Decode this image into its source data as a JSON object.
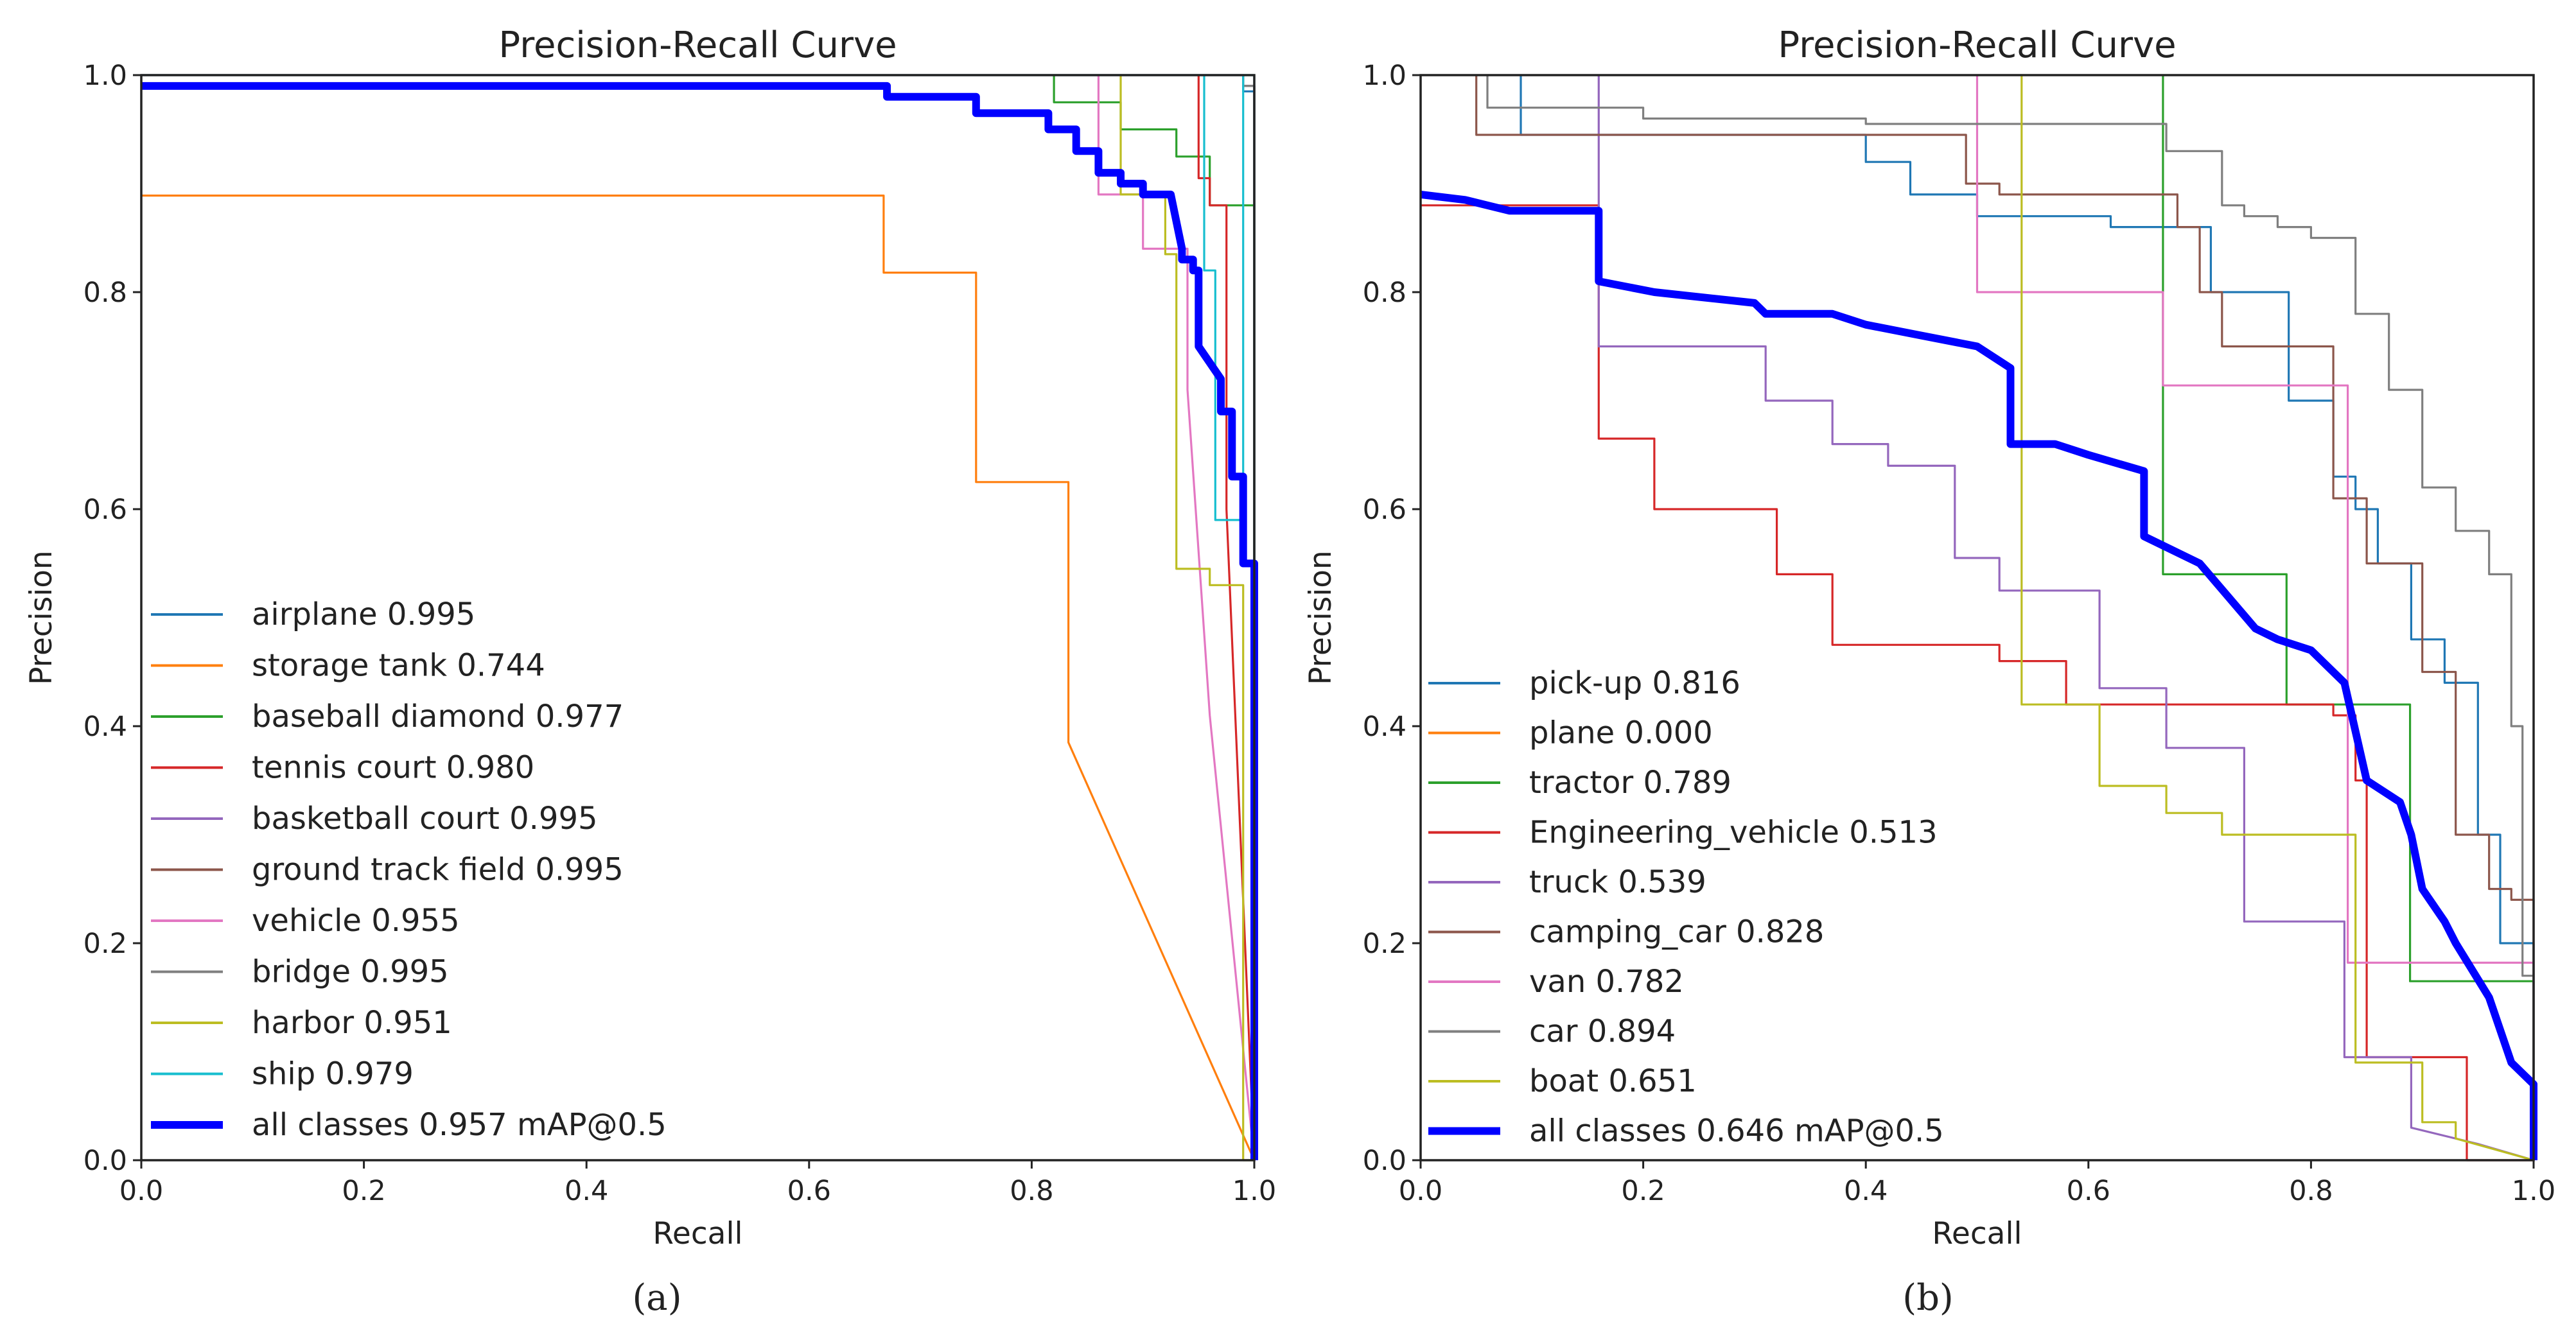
{
  "chart_data": [
    {
      "type": "line",
      "caption": "(a)",
      "title": "Precision-Recall Curve",
      "xlabel": "Recall",
      "ylabel": "Precision",
      "xlim": [
        0,
        1
      ],
      "ylim": [
        0,
        1
      ],
      "xticks": [
        "0.0",
        "0.2",
        "0.4",
        "0.6",
        "0.8",
        "1.0"
      ],
      "yticks": [
        "0.0",
        "0.2",
        "0.4",
        "0.6",
        "0.8",
        "1.0"
      ],
      "legend_position": "lower-left",
      "series": [
        {
          "name": "airplane 0.995",
          "color": "#1f77b4",
          "width": "thin",
          "x": [
            0,
            0.99,
            0.99,
            1.0,
            1.0
          ],
          "y": [
            1.0,
            1.0,
            0.985,
            0.985,
            0.0
          ]
        },
        {
          "name": "storage tank 0.744",
          "color": "#ff7f0e",
          "width": "thin",
          "x": [
            0,
            0.667,
            0.667,
            0.75,
            0.75,
            0.833,
            0.833,
            1.0
          ],
          "y": [
            0.889,
            0.889,
            0.818,
            0.818,
            0.625,
            0.625,
            0.385,
            0.0
          ]
        },
        {
          "name": "baseball diamond 0.977",
          "color": "#2ca02c",
          "width": "thin",
          "x": [
            0.82,
            0.82,
            0.88,
            0.88,
            0.93,
            0.93,
            0.96,
            0.96,
            1.0,
            1.0
          ],
          "y": [
            1.0,
            0.975,
            0.975,
            0.95,
            0.95,
            0.925,
            0.925,
            0.88,
            0.88,
            0.0
          ]
        },
        {
          "name": "tennis court 0.980",
          "color": "#d62728",
          "width": "thin",
          "x": [
            0.95,
            0.95,
            0.96,
            0.96,
            0.975,
            0.975,
            1.0
          ],
          "y": [
            1.0,
            0.905,
            0.905,
            0.88,
            0.88,
            0.6,
            0.0
          ]
        },
        {
          "name": "basketball court 0.995",
          "color": "#9467bd",
          "width": "thin",
          "x": [
            0.99,
            0.99,
            1.0,
            1.0
          ],
          "y": [
            1.0,
            0.99,
            0.99,
            0.0
          ]
        },
        {
          "name": "ground track field 0.995",
          "color": "#8c564b",
          "width": "thin",
          "x": [
            0.99,
            0.99,
            1.0,
            1.0
          ],
          "y": [
            1.0,
            0.99,
            0.99,
            0.0
          ]
        },
        {
          "name": "vehicle 0.955",
          "color": "#e377c2",
          "width": "thin",
          "x": [
            0.86,
            0.86,
            0.9,
            0.9,
            0.94,
            0.94,
            0.96,
            1.0
          ],
          "y": [
            1.0,
            0.89,
            0.89,
            0.84,
            0.84,
            0.71,
            0.41,
            0.0
          ]
        },
        {
          "name": "bridge 0.995",
          "color": "#7f7f7f",
          "width": "thin",
          "x": [
            0.99,
            0.99,
            1.0,
            1.0
          ],
          "y": [
            1.0,
            0.99,
            0.99,
            0.0
          ]
        },
        {
          "name": "harbor 0.951",
          "color": "#bcbd22",
          "width": "thin",
          "x": [
            0.88,
            0.88,
            0.92,
            0.92,
            0.93,
            0.93,
            0.96,
            0.96,
            0.99,
            0.99,
            1.0
          ],
          "y": [
            1.0,
            0.89,
            0.89,
            0.835,
            0.835,
            0.545,
            0.545,
            0.53,
            0.53,
            0.0,
            0.0
          ]
        },
        {
          "name": "ship 0.979",
          "color": "#17becf",
          "width": "thin",
          "x": [
            0.955,
            0.955,
            0.965,
            0.965,
            0.99,
            0.99,
            1.0,
            1.0
          ],
          "y": [
            1.0,
            0.82,
            0.82,
            0.59,
            0.59,
            1.0,
            1.0,
            0.0
          ]
        },
        {
          "name": "all classes 0.957 mAP@0.5",
          "color": "#0000ff",
          "width": "thick",
          "x": [
            0,
            0.67,
            0.67,
            0.75,
            0.75,
            0.815,
            0.815,
            0.84,
            0.84,
            0.86,
            0.86,
            0.88,
            0.88,
            0.9,
            0.9,
            0.925,
            0.935,
            0.935,
            0.945,
            0.945,
            0.95,
            0.95,
            0.97,
            0.97,
            0.98,
            0.98,
            0.99,
            0.99,
            1.0,
            1.0
          ],
          "y": [
            0.99,
            0.99,
            0.98,
            0.98,
            0.965,
            0.965,
            0.95,
            0.95,
            0.93,
            0.93,
            0.91,
            0.91,
            0.9,
            0.9,
            0.89,
            0.89,
            0.84,
            0.83,
            0.83,
            0.82,
            0.82,
            0.75,
            0.72,
            0.69,
            0.69,
            0.63,
            0.63,
            0.55,
            0.55,
            0.0
          ]
        }
      ]
    },
    {
      "type": "line",
      "caption": "(b)",
      "title": "Precision-Recall Curve",
      "xlabel": "Recall",
      "ylabel": "Precision",
      "xlim": [
        0,
        1
      ],
      "ylim": [
        0,
        1
      ],
      "xticks": [
        "0.0",
        "0.2",
        "0.4",
        "0.6",
        "0.8",
        "1.0"
      ],
      "yticks": [
        "0.0",
        "0.2",
        "0.4",
        "0.6",
        "0.8",
        "1.0"
      ],
      "legend_position": "lower-left",
      "series": [
        {
          "name": "pick-up 0.816",
          "color": "#1f77b4",
          "width": "thin",
          "x": [
            0.09,
            0.09,
            0.4,
            0.4,
            0.44,
            0.44,
            0.5,
            0.5,
            0.62,
            0.62,
            0.71,
            0.71,
            0.74,
            0.74,
            0.78,
            0.78,
            0.82,
            0.82,
            0.84,
            0.84,
            0.86,
            0.86,
            0.89,
            0.89,
            0.92,
            0.92,
            0.95,
            0.95,
            0.97,
            0.97,
            1.0,
            1.0
          ],
          "y": [
            1.0,
            0.945,
            0.945,
            0.92,
            0.92,
            0.89,
            0.89,
            0.87,
            0.87,
            0.86,
            0.86,
            0.8,
            0.8,
            0.8,
            0.8,
            0.7,
            0.7,
            0.63,
            0.63,
            0.6,
            0.6,
            0.55,
            0.55,
            0.48,
            0.48,
            0.44,
            0.44,
            0.3,
            0.3,
            0.2,
            0.2,
            0.0
          ]
        },
        {
          "name": "plane 0.000",
          "color": "#ff7f0e",
          "width": "thin",
          "x": [],
          "y": []
        },
        {
          "name": "tractor 0.789",
          "color": "#2ca02c",
          "width": "thin",
          "x": [
            0.667,
            0.667,
            0.778,
            0.778,
            0.889,
            0.889,
            1.0,
            1.0
          ],
          "y": [
            1.0,
            0.54,
            0.54,
            0.42,
            0.42,
            0.165,
            0.165,
            0.0
          ]
        },
        {
          "name": "Engineering_vehicle 0.513",
          "color": "#d62728",
          "width": "thin",
          "x": [
            0,
            0.16,
            0.16,
            0.21,
            0.21,
            0.32,
            0.32,
            0.37,
            0.37,
            0.52,
            0.52,
            0.58,
            0.58,
            0.82,
            0.82,
            0.84,
            0.84,
            0.85,
            0.85,
            0.94,
            0.94,
            1.0
          ],
          "y": [
            0.88,
            0.88,
            0.665,
            0.665,
            0.6,
            0.6,
            0.54,
            0.54,
            0.475,
            0.475,
            0.46,
            0.46,
            0.42,
            0.42,
            0.41,
            0.41,
            0.35,
            0.35,
            0.095,
            0.095,
            0.0,
            0.0
          ]
        },
        {
          "name": "truck 0.539",
          "color": "#9467bd",
          "width": "thin",
          "x": [
            0.16,
            0.16,
            0.31,
            0.31,
            0.37,
            0.37,
            0.42,
            0.42,
            0.48,
            0.48,
            0.52,
            0.52,
            0.61,
            0.61,
            0.67,
            0.67,
            0.74,
            0.74,
            0.83,
            0.83,
            0.89,
            0.89,
            0.95,
            1.0
          ],
          "y": [
            1.0,
            0.75,
            0.75,
            0.7,
            0.7,
            0.66,
            0.66,
            0.64,
            0.64,
            0.555,
            0.555,
            0.525,
            0.525,
            0.435,
            0.435,
            0.38,
            0.38,
            0.22,
            0.22,
            0.095,
            0.095,
            0.03,
            0.015,
            0.0
          ]
        },
        {
          "name": "camping_car 0.828",
          "color": "#8c564b",
          "width": "thin",
          "x": [
            0.05,
            0.05,
            0.49,
            0.49,
            0.52,
            0.52,
            0.68,
            0.68,
            0.7,
            0.7,
            0.72,
            0.72,
            0.82,
            0.82,
            0.85,
            0.85,
            0.9,
            0.9,
            0.93,
            0.93,
            0.96,
            0.96,
            0.98,
            0.98,
            1.0,
            1.0
          ],
          "y": [
            1.0,
            0.945,
            0.945,
            0.9,
            0.9,
            0.89,
            0.89,
            0.86,
            0.86,
            0.8,
            0.8,
            0.75,
            0.75,
            0.61,
            0.61,
            0.55,
            0.55,
            0.45,
            0.45,
            0.3,
            0.3,
            0.25,
            0.25,
            0.24,
            0.24,
            0.0
          ]
        },
        {
          "name": "van 0.782",
          "color": "#e377c2",
          "width": "thin",
          "x": [
            0.5,
            0.5,
            0.667,
            0.667,
            0.833,
            0.833,
            1.0,
            1.0
          ],
          "y": [
            1.0,
            0.8,
            0.8,
            0.714,
            0.714,
            0.182,
            0.182,
            0.0
          ]
        },
        {
          "name": "car 0.894",
          "color": "#7f7f7f",
          "width": "thin",
          "x": [
            0.06,
            0.06,
            0.2,
            0.2,
            0.4,
            0.4,
            0.67,
            0.67,
            0.72,
            0.72,
            0.74,
            0.74,
            0.77,
            0.77,
            0.8,
            0.8,
            0.84,
            0.84,
            0.87,
            0.87,
            0.9,
            0.9,
            0.93,
            0.93,
            0.96,
            0.96,
            0.98,
            0.98,
            0.99,
            0.99,
            1.0,
            1.0
          ],
          "y": [
            1.0,
            0.97,
            0.97,
            0.96,
            0.96,
            0.955,
            0.955,
            0.93,
            0.93,
            0.88,
            0.88,
            0.87,
            0.87,
            0.86,
            0.86,
            0.85,
            0.85,
            0.78,
            0.78,
            0.71,
            0.71,
            0.62,
            0.62,
            0.58,
            0.58,
            0.54,
            0.54,
            0.4,
            0.4,
            0.17,
            0.17,
            0.0
          ]
        },
        {
          "name": "boat 0.651",
          "color": "#bcbd22",
          "width": "thin",
          "x": [
            0.54,
            0.54,
            0.61,
            0.61,
            0.67,
            0.67,
            0.72,
            0.72,
            0.78,
            0.78,
            0.84,
            0.84,
            0.9,
            0.9,
            0.93,
            0.93,
            1.0
          ],
          "y": [
            1.0,
            0.42,
            0.42,
            0.345,
            0.345,
            0.32,
            0.32,
            0.3,
            0.3,
            0.3,
            0.3,
            0.09,
            0.09,
            0.035,
            0.035,
            0.02,
            0.0
          ]
        },
        {
          "name": "all classes 0.646 mAP@0.5",
          "color": "#0000ff",
          "width": "thick",
          "x": [
            0,
            0.04,
            0.06,
            0.08,
            0.16,
            0.16,
            0.21,
            0.3,
            0.31,
            0.37,
            0.4,
            0.45,
            0.5,
            0.53,
            0.53,
            0.57,
            0.6,
            0.65,
            0.65,
            0.7,
            0.75,
            0.77,
            0.8,
            0.83,
            0.85,
            0.85,
            0.88,
            0.89,
            0.9,
            0.92,
            0.93,
            0.96,
            0.98,
            1.0,
            1.0
          ],
          "y": [
            0.89,
            0.885,
            0.88,
            0.875,
            0.875,
            0.81,
            0.8,
            0.79,
            0.78,
            0.78,
            0.77,
            0.76,
            0.75,
            0.73,
            0.66,
            0.66,
            0.65,
            0.635,
            0.575,
            0.55,
            0.49,
            0.48,
            0.47,
            0.44,
            0.35,
            0.35,
            0.33,
            0.3,
            0.25,
            0.22,
            0.2,
            0.15,
            0.09,
            0.07,
            0.0
          ]
        }
      ]
    }
  ]
}
